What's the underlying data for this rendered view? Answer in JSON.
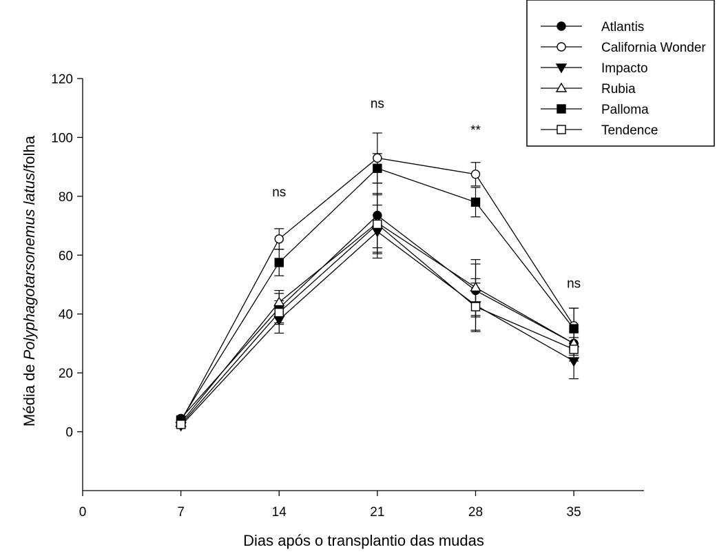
{
  "chart_data": {
    "type": "line",
    "title": "",
    "xlabel": "Dias após o transplantio das mudas",
    "ylabel": {
      "prefix": "Média de ",
      "italic": "Polyphagotarsonemus latus",
      "suffix": "/folha"
    },
    "xlim": [
      0,
      40
    ],
    "ylim": [
      -20,
      120
    ],
    "xticks": [
      0,
      7,
      14,
      21,
      28,
      35
    ],
    "xtick_labels": [
      "0",
      "7",
      "14",
      "21",
      "28",
      "35"
    ],
    "yticks": [
      0,
      20,
      40,
      60,
      80,
      100,
      120
    ],
    "ytick_labels": [
      "0",
      "20",
      "40",
      "60",
      "80",
      "100",
      "120"
    ],
    "grid": false,
    "legend_position": "top-right",
    "x": [
      7,
      14,
      21,
      28,
      35
    ],
    "series": [
      {
        "name": "Atlantis",
        "marker": "circle-filled",
        "values": [
          4.5,
          42,
          73.5,
          48,
          30
        ],
        "errors": [
          0.8,
          5,
          11,
          9,
          4
        ]
      },
      {
        "name": "California Wonder",
        "marker": "circle-open",
        "values": [
          3.5,
          65.5,
          93,
          87.5,
          36
        ],
        "errors": [
          0.8,
          3.5,
          8.5,
          4,
          6
        ]
      },
      {
        "name": "Impacto",
        "marker": "triangle-down-filled",
        "values": [
          2,
          38,
          68,
          43,
          24
        ],
        "errors": [
          0.8,
          4.5,
          9,
          9,
          6
        ]
      },
      {
        "name": "Rubia",
        "marker": "triangle-up-open",
        "values": [
          3,
          44,
          71,
          49,
          30
        ],
        "errors": [
          0.8,
          4,
          10,
          9.5,
          5
        ]
      },
      {
        "name": "Palloma",
        "marker": "square-filled",
        "values": [
          4,
          57.5,
          89.5,
          78,
          35
        ],
        "errors": [
          0.8,
          4.5,
          5,
          5,
          7
        ]
      },
      {
        "name": "Tendence",
        "marker": "square-open",
        "values": [
          2.5,
          40.5,
          70.5,
          42.5,
          28
        ],
        "errors": [
          0.8,
          4,
          10,
          8,
          4
        ]
      }
    ],
    "annotations": [
      {
        "text": "ns",
        "x": 14,
        "y": 80
      },
      {
        "text": "ns",
        "x": 21,
        "y": 110
      },
      {
        "text": "**",
        "x": 28,
        "y": 101
      },
      {
        "text": "ns",
        "x": 35,
        "y": 49
      }
    ]
  }
}
